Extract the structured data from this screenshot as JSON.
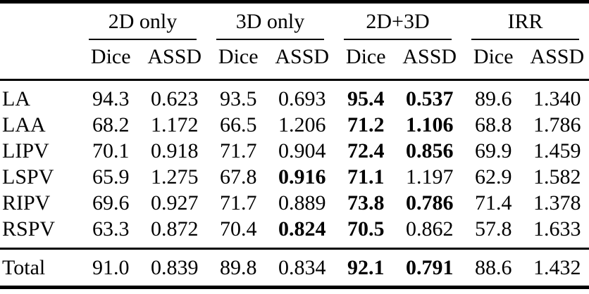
{
  "table": {
    "colors": {
      "text": "#000000",
      "background": "#ffffff",
      "rule": "#000000"
    },
    "groups": [
      {
        "label": "2D only"
      },
      {
        "label": "3D only"
      },
      {
        "label": "2D+3D"
      },
      {
        "label": "IRR"
      }
    ],
    "subheaders": [
      "Dice",
      "ASSD",
      "Dice",
      "ASSD",
      "Dice",
      "ASSD",
      "Dice",
      "ASSD"
    ],
    "rows": [
      {
        "label": "LA",
        "values": [
          "94.3",
          "0.623",
          "93.5",
          "0.693",
          "95.4",
          "0.537",
          "89.6",
          "1.340"
        ],
        "bold": [
          4,
          5
        ]
      },
      {
        "label": "LAA",
        "values": [
          "68.2",
          "1.172",
          "66.5",
          "1.206",
          "71.2",
          "1.106",
          "68.8",
          "1.786"
        ],
        "bold": [
          4,
          5
        ]
      },
      {
        "label": "LIPV",
        "values": [
          "70.1",
          "0.918",
          "71.7",
          "0.904",
          "72.4",
          "0.856",
          "69.9",
          "1.459"
        ],
        "bold": [
          4,
          5
        ]
      },
      {
        "label": "LSPV",
        "values": [
          "65.9",
          "1.275",
          "67.8",
          "0.916",
          "71.1",
          "1.197",
          "62.9",
          "1.582"
        ],
        "bold": [
          3,
          4
        ]
      },
      {
        "label": "RIPV",
        "values": [
          "69.6",
          "0.927",
          "71.7",
          "0.889",
          "73.8",
          "0.786",
          "71.4",
          "1.378"
        ],
        "bold": [
          4,
          5
        ]
      },
      {
        "label": "RSPV",
        "values": [
          "63.3",
          "0.872",
          "70.4",
          "0.824",
          "70.5",
          "0.862",
          "57.8",
          "1.633"
        ],
        "bold": [
          3,
          4
        ]
      }
    ],
    "total_row": {
      "label": "Total",
      "values": [
        "91.0",
        "0.839",
        "89.8",
        "0.834",
        "92.1",
        "0.791",
        "88.6",
        "1.432"
      ],
      "bold": [
        4,
        5
      ]
    }
  }
}
